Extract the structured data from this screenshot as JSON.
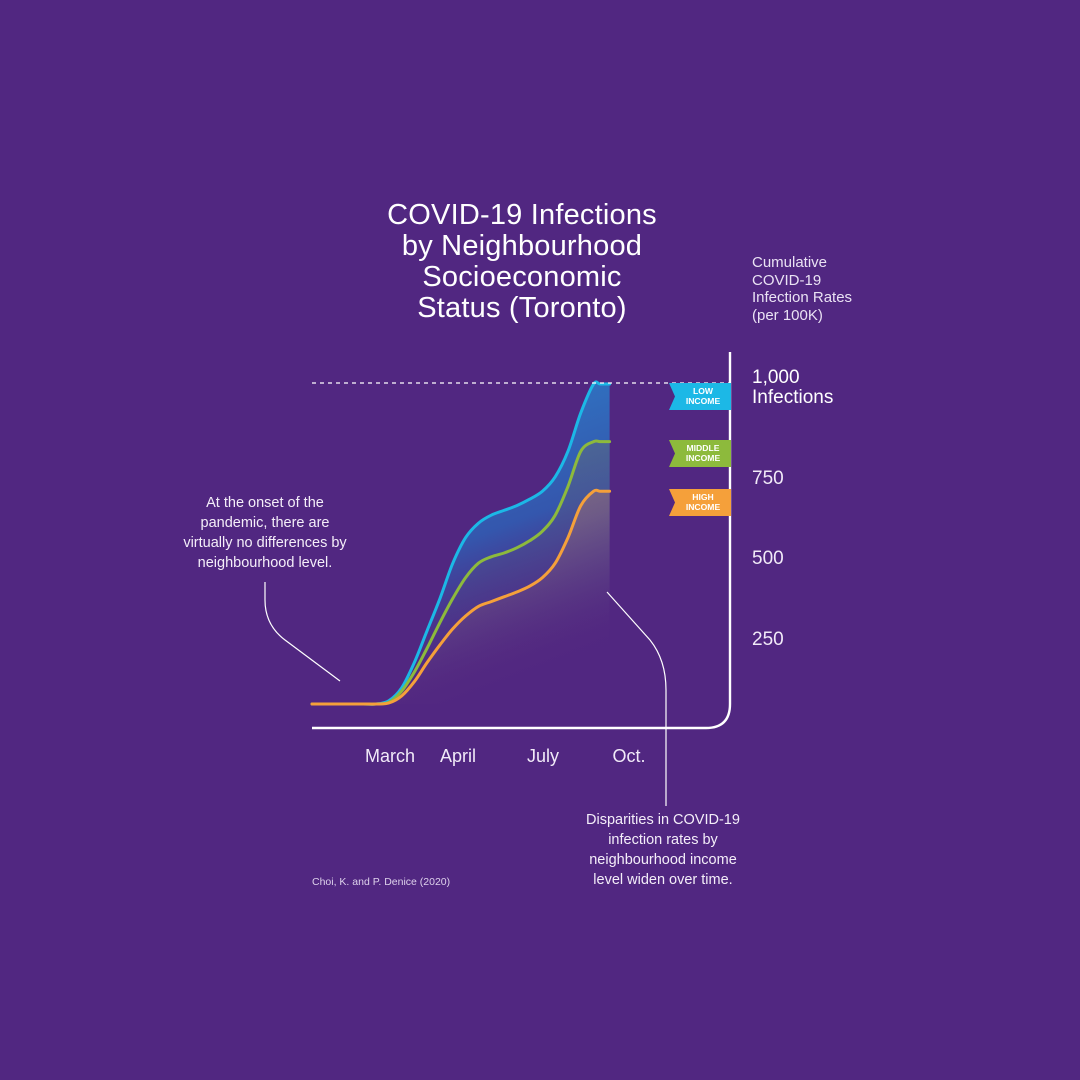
{
  "colors": {
    "background": "#512781",
    "low_income": "#1cb8e6",
    "middle_income": "#8dba3c",
    "high_income": "#f5a03a",
    "axis": "#ffffff"
  },
  "chart_data": {
    "type": "area",
    "title": "COVID-19 Infections by Neighbourhood Socioeconomic Status (Toronto)",
    "ylabel": "Cumulative COVID-19 Infection Rates (per 100K)",
    "ylim": [
      0,
      1100
    ],
    "y_ticks": [
      {
        "value": 250,
        "label": "250"
      },
      {
        "value": 500,
        "label": "500"
      },
      {
        "value": 750,
        "label": "750"
      }
    ],
    "y_top_tick": {
      "value": 1000,
      "line1": "1,000",
      "line2": "Infections"
    },
    "reference_line_value": 1000,
    "x_ticks": [
      {
        "x": 2.2,
        "label": "March"
      },
      {
        "x": 3.0,
        "label": "April"
      },
      {
        "x": 4.0,
        "label": "July"
      },
      {
        "x": 5.0,
        "label": "Oct."
      }
    ],
    "xlim": [
      0,
      5.4
    ],
    "series": [
      {
        "name": "LOW INCOME",
        "label_line1": "LOW",
        "label_line2": "INCOME",
        "color": "#1cb8e6",
        "x": [
          0.8,
          1.2,
          1.6,
          1.8,
          2.0,
          2.2,
          2.4,
          2.6,
          2.8,
          3.0,
          3.2,
          3.4,
          3.6,
          3.8,
          4.0,
          4.2,
          4.4,
          4.6,
          4.8,
          5.0,
          5.2,
          5.3,
          5.45
        ],
        "y": [
          0,
          0,
          0,
          0,
          10,
          50,
          130,
          230,
          330,
          440,
          520,
          565,
          590,
          605,
          620,
          640,
          665,
          710,
          790,
          910,
          1000,
          1000,
          1000
        ]
      },
      {
        "name": "MIDDLE INCOME",
        "label_line1": "MIDDLE",
        "label_line2": "INCOME",
        "color": "#8dba3c",
        "x": [
          0.8,
          1.2,
          1.6,
          1.8,
          2.0,
          2.2,
          2.4,
          2.6,
          2.8,
          3.0,
          3.2,
          3.4,
          3.6,
          3.8,
          4.0,
          4.2,
          4.4,
          4.6,
          4.8,
          5.0,
          5.2,
          5.3,
          5.45
        ],
        "y": [
          0,
          0,
          0,
          0,
          5,
          40,
          100,
          175,
          255,
          330,
          395,
          440,
          460,
          472,
          488,
          510,
          540,
          590,
          680,
          790,
          820,
          820,
          820
        ]
      },
      {
        "name": "HIGH INCOME",
        "label_line1": "HIGH",
        "label_line2": "INCOME",
        "color": "#f5a03a",
        "x": [
          0.8,
          1.2,
          1.6,
          1.8,
          2.0,
          2.2,
          2.4,
          2.6,
          2.8,
          3.0,
          3.2,
          3.4,
          3.6,
          3.8,
          4.0,
          4.2,
          4.4,
          4.6,
          4.8,
          5.0,
          5.2,
          5.3,
          5.45
        ],
        "y": [
          0,
          0,
          0,
          0,
          3,
          25,
          70,
          130,
          185,
          235,
          275,
          305,
          320,
          335,
          350,
          368,
          395,
          440,
          520,
          620,
          665,
          665,
          665
        ]
      }
    ],
    "annotations": [
      {
        "text": "At the onset of the pandemic, there are virtually no differences by neighbourhood level."
      },
      {
        "text": "Disparities in COVID-19 infection rates by neighbourhood income level widen over time."
      }
    ],
    "source": "Choi, K. and P. Denice (2020)"
  },
  "title_lines": [
    "COVID-19 Infections",
    "by Neighbourhood",
    "Socioeconomic",
    "Status (Toronto)"
  ],
  "ylabel_lines": [
    "Cumulative",
    "COVID-19",
    "Infection Rates",
    "(per 100K)"
  ],
  "annotation_left_lines": [
    "At the onset of the",
    "pandemic, there are",
    "virtually no differences by",
    "neighbourhood level."
  ],
  "annotation_right_lines": [
    "Disparities in COVID-19",
    "infection rates by",
    "neighbourhood income",
    "level widen over time."
  ]
}
